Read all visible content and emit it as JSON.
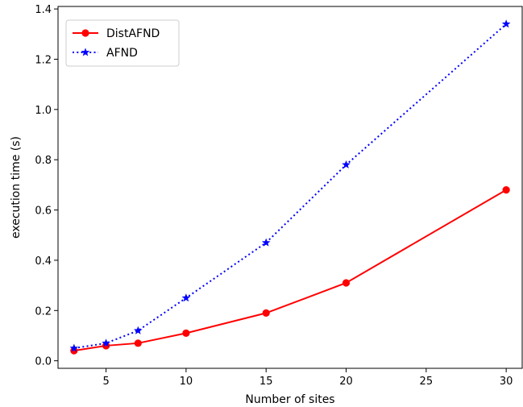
{
  "chart_data": {
    "type": "line",
    "xlabel": "Number of sites",
    "ylabel": "execution time (s)",
    "xlim": [
      2.0,
      31.0
    ],
    "ylim": [
      -0.03,
      1.41
    ],
    "xticks": [
      5,
      10,
      15,
      20,
      25,
      30
    ],
    "yticks": [
      0.0,
      0.2,
      0.4,
      0.6,
      0.8,
      1.0,
      1.2,
      1.4
    ],
    "ytick_labels": [
      "0.0",
      "0.2",
      "0.4",
      "0.6",
      "0.8",
      "1.0",
      "1.2",
      "1.4"
    ],
    "grid": false,
    "legend_position": "top-left",
    "series": [
      {
        "name": "DistAFND",
        "color": "#ff0000",
        "line_style": "solid",
        "marker": "circle",
        "x": [
          3,
          5,
          7,
          10,
          15,
          20,
          30
        ],
        "y": [
          0.04,
          0.06,
          0.07,
          0.11,
          0.19,
          0.31,
          0.68
        ]
      },
      {
        "name": "AFND",
        "color": "#0000ff",
        "line_style": "dotted",
        "marker": "star",
        "x": [
          3,
          5,
          7,
          10,
          15,
          20,
          30
        ],
        "y": [
          0.05,
          0.07,
          0.12,
          0.25,
          0.47,
          0.78,
          1.34
        ]
      }
    ]
  }
}
